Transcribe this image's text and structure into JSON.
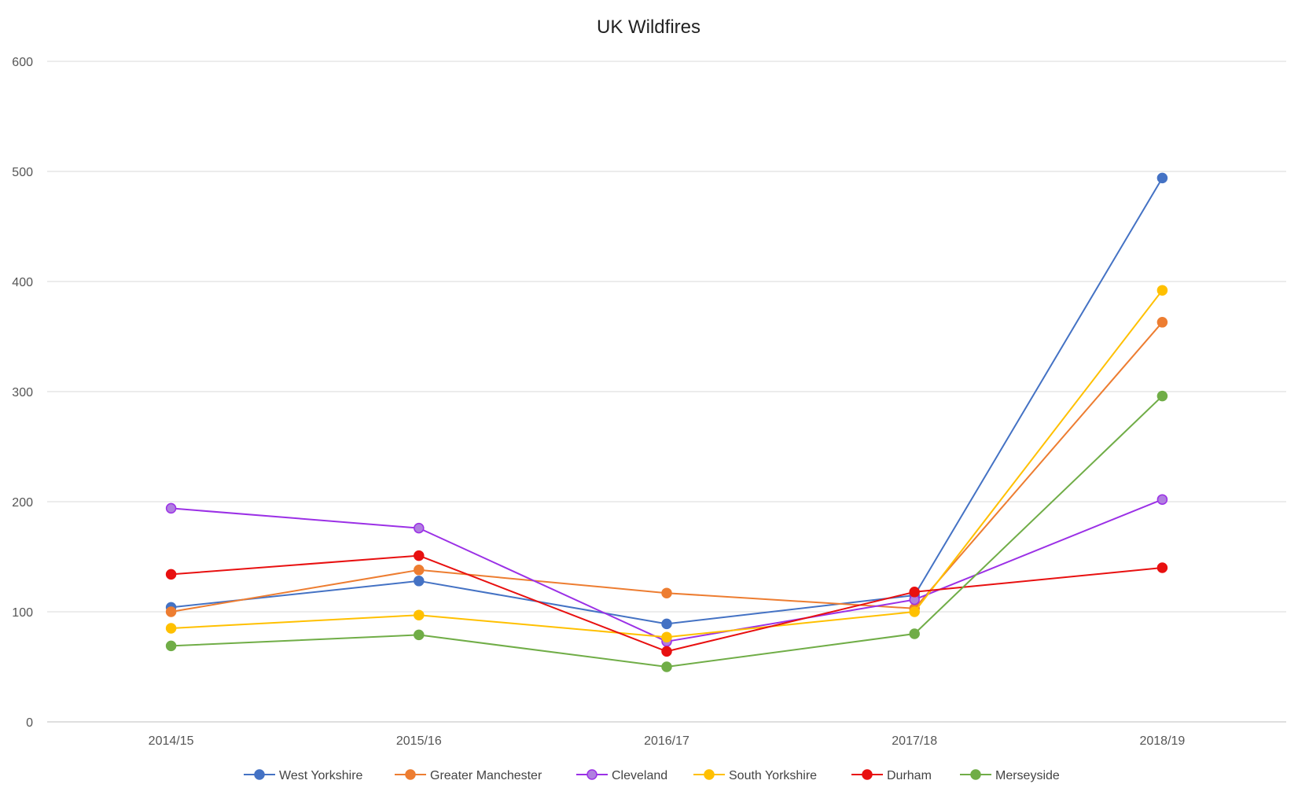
{
  "chart_data": {
    "type": "line",
    "title": "UK Wildfires",
    "xlabel": "",
    "ylabel": "",
    "ylim": [
      0,
      600
    ],
    "y_ticks": [
      0,
      100,
      200,
      300,
      400,
      500,
      600
    ],
    "grid": true,
    "legend_position": "bottom",
    "categories": [
      "2014/15",
      "2015/16",
      "2016/17",
      "2017/18",
      "2018/19"
    ],
    "series": [
      {
        "name": "West Yorkshire",
        "color": "#4472C4",
        "values": [
          104,
          128,
          89,
          115,
          494
        ]
      },
      {
        "name": "Greater Manchester",
        "color": "#ED7D31",
        "values": [
          100,
          138,
          117,
          103,
          363
        ]
      },
      {
        "name": "Cleveland",
        "color": "#9B30E6",
        "marker_fill": "#B07FE0",
        "values": [
          194,
          176,
          73,
          111,
          202
        ]
      },
      {
        "name": "South Yorkshire",
        "color": "#FFC000",
        "values": [
          85,
          97,
          77,
          100,
          392
        ]
      },
      {
        "name": "Durham",
        "color": "#E81010",
        "values": [
          134,
          151,
          64,
          118,
          140
        ]
      },
      {
        "name": "Merseyside",
        "color": "#70AD47",
        "values": [
          69,
          79,
          50,
          80,
          296
        ]
      }
    ]
  }
}
